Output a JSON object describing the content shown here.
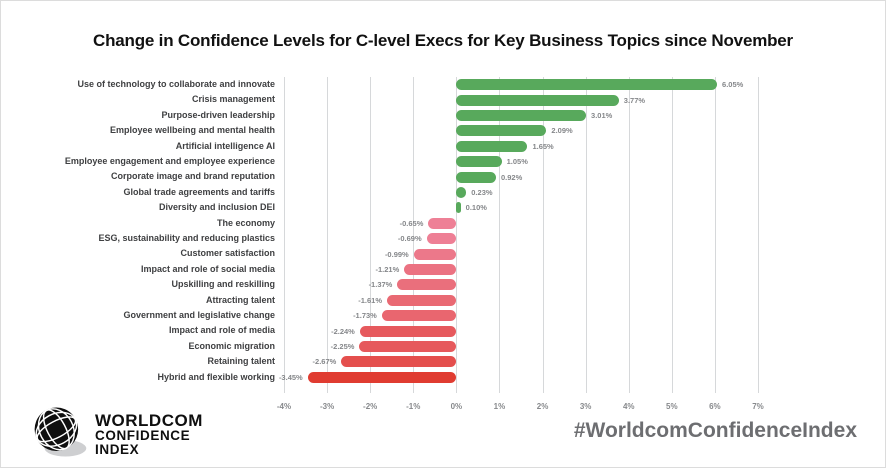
{
  "title": "Change in Confidence Levels for C-level Execs for Key Business Topics since November",
  "chart_data": {
    "type": "bar",
    "orientation": "horizontal",
    "title": "Change in Confidence Levels for C-level Execs for Key Business Topics since November",
    "categories": [
      "Use of technology to collaborate and innovate",
      "Crisis management",
      "Purpose-driven leadership",
      "Employee wellbeing and mental health",
      "Artificial intelligence AI",
      "Employee engagement and employee experience",
      "Corporate image and brand reputation",
      "Global trade agreements and tariffs",
      "Diversity and inclusion DEI",
      "The economy",
      "ESG, sustainability and reducing plastics",
      "Customer satisfaction",
      "Impact and role of social media",
      "Upskilling and reskilling",
      "Attracting talent",
      "Government and legislative change",
      "Impact and role of media",
      "Economic migration",
      "Retaining talent",
      "Hybrid and flexible working"
    ],
    "values": [
      6.05,
      3.77,
      3.01,
      2.09,
      1.65,
      1.05,
      0.92,
      0.23,
      0.1,
      -0.65,
      -0.69,
      -0.99,
      -1.21,
      -1.37,
      -1.61,
      -1.73,
      -2.24,
      -2.25,
      -2.67,
      -3.45
    ],
    "value_labels": [
      "6.05%",
      "3.77%",
      "3.01%",
      "2.09%",
      "1.65%",
      "1.05%",
      "0.92%",
      "0.23%",
      "0.10%",
      "-0.65%",
      "-0.69%",
      "-0.99%",
      "-1.21%",
      "-1.37%",
      "-1.61%",
      "-1.73%",
      "-2.24%",
      "-2.25%",
      "-2.67%",
      "-3.45%"
    ],
    "xlim": [
      -4,
      7
    ],
    "x_ticks": [
      "-4%",
      "-3%",
      "-2%",
      "-1%",
      "0%",
      "1%",
      "2%",
      "3%",
      "4%",
      "5%",
      "6%",
      "7%"
    ],
    "grid": true,
    "legend": "none",
    "colors": {
      "positive": "#58a95c",
      "negative_light": "#ee8096",
      "negative_dark": "#e03c31"
    }
  },
  "footer": {
    "logo_line1": "WORLDCOM",
    "logo_line2": "CONFIDENCE",
    "logo_line3": "INDEX",
    "hashtag": "#WorldcomConfidenceIndex"
  }
}
